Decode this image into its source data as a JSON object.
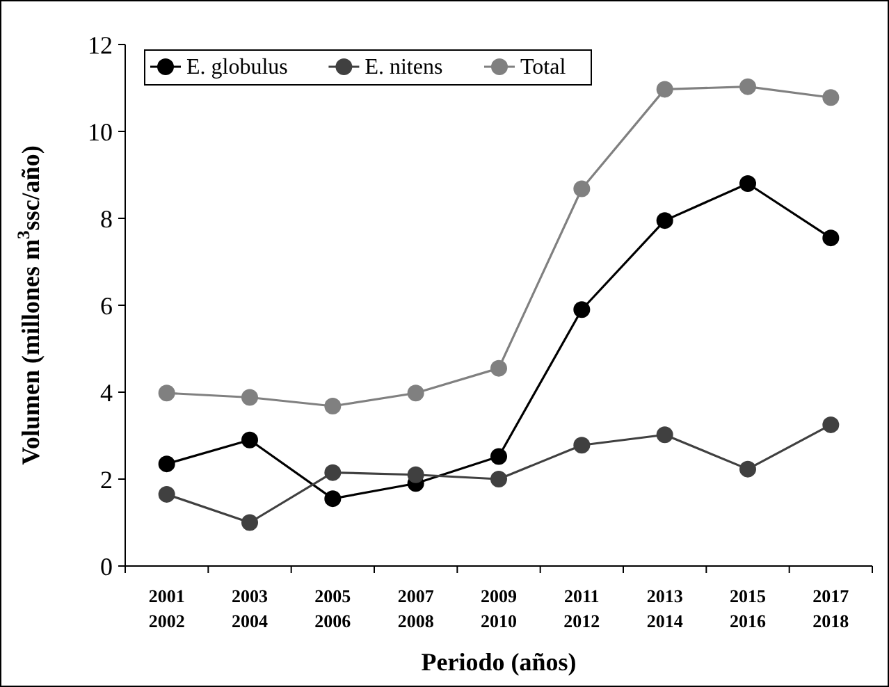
{
  "chart_data": {
    "type": "line",
    "xlabel": "Periodo (años)",
    "ylabel": "Volumen (millones m$^{3}$ssc/año)",
    "categories": [
      "2001\n2002",
      "2003\n2004",
      "2005\n2006",
      "2007\n2008",
      "2009\n2010",
      "2011\n2012",
      "2013\n2014",
      "2015\n2016",
      "2017\n2018"
    ],
    "series": [
      {
        "name": "E. globulus",
        "color": "#000000",
        "values": [
          2.35,
          2.9,
          1.55,
          1.9,
          2.52,
          5.9,
          7.95,
          8.8,
          7.55
        ]
      },
      {
        "name": "E. nitens",
        "color": "#404040",
        "values": [
          1.65,
          1.0,
          2.15,
          2.1,
          2.0,
          2.78,
          3.02,
          2.23,
          3.25
        ]
      },
      {
        "name": "Total",
        "color": "#808080",
        "values": [
          3.98,
          3.88,
          3.68,
          3.98,
          4.55,
          8.68,
          10.97,
          11.03,
          10.78
        ]
      }
    ],
    "ylim": [
      0,
      12
    ],
    "yticks": [
      0,
      2,
      4,
      6,
      8,
      10,
      12
    ],
    "grid": false,
    "legend": "top left",
    "marker": "circle",
    "line_style": "solid"
  }
}
